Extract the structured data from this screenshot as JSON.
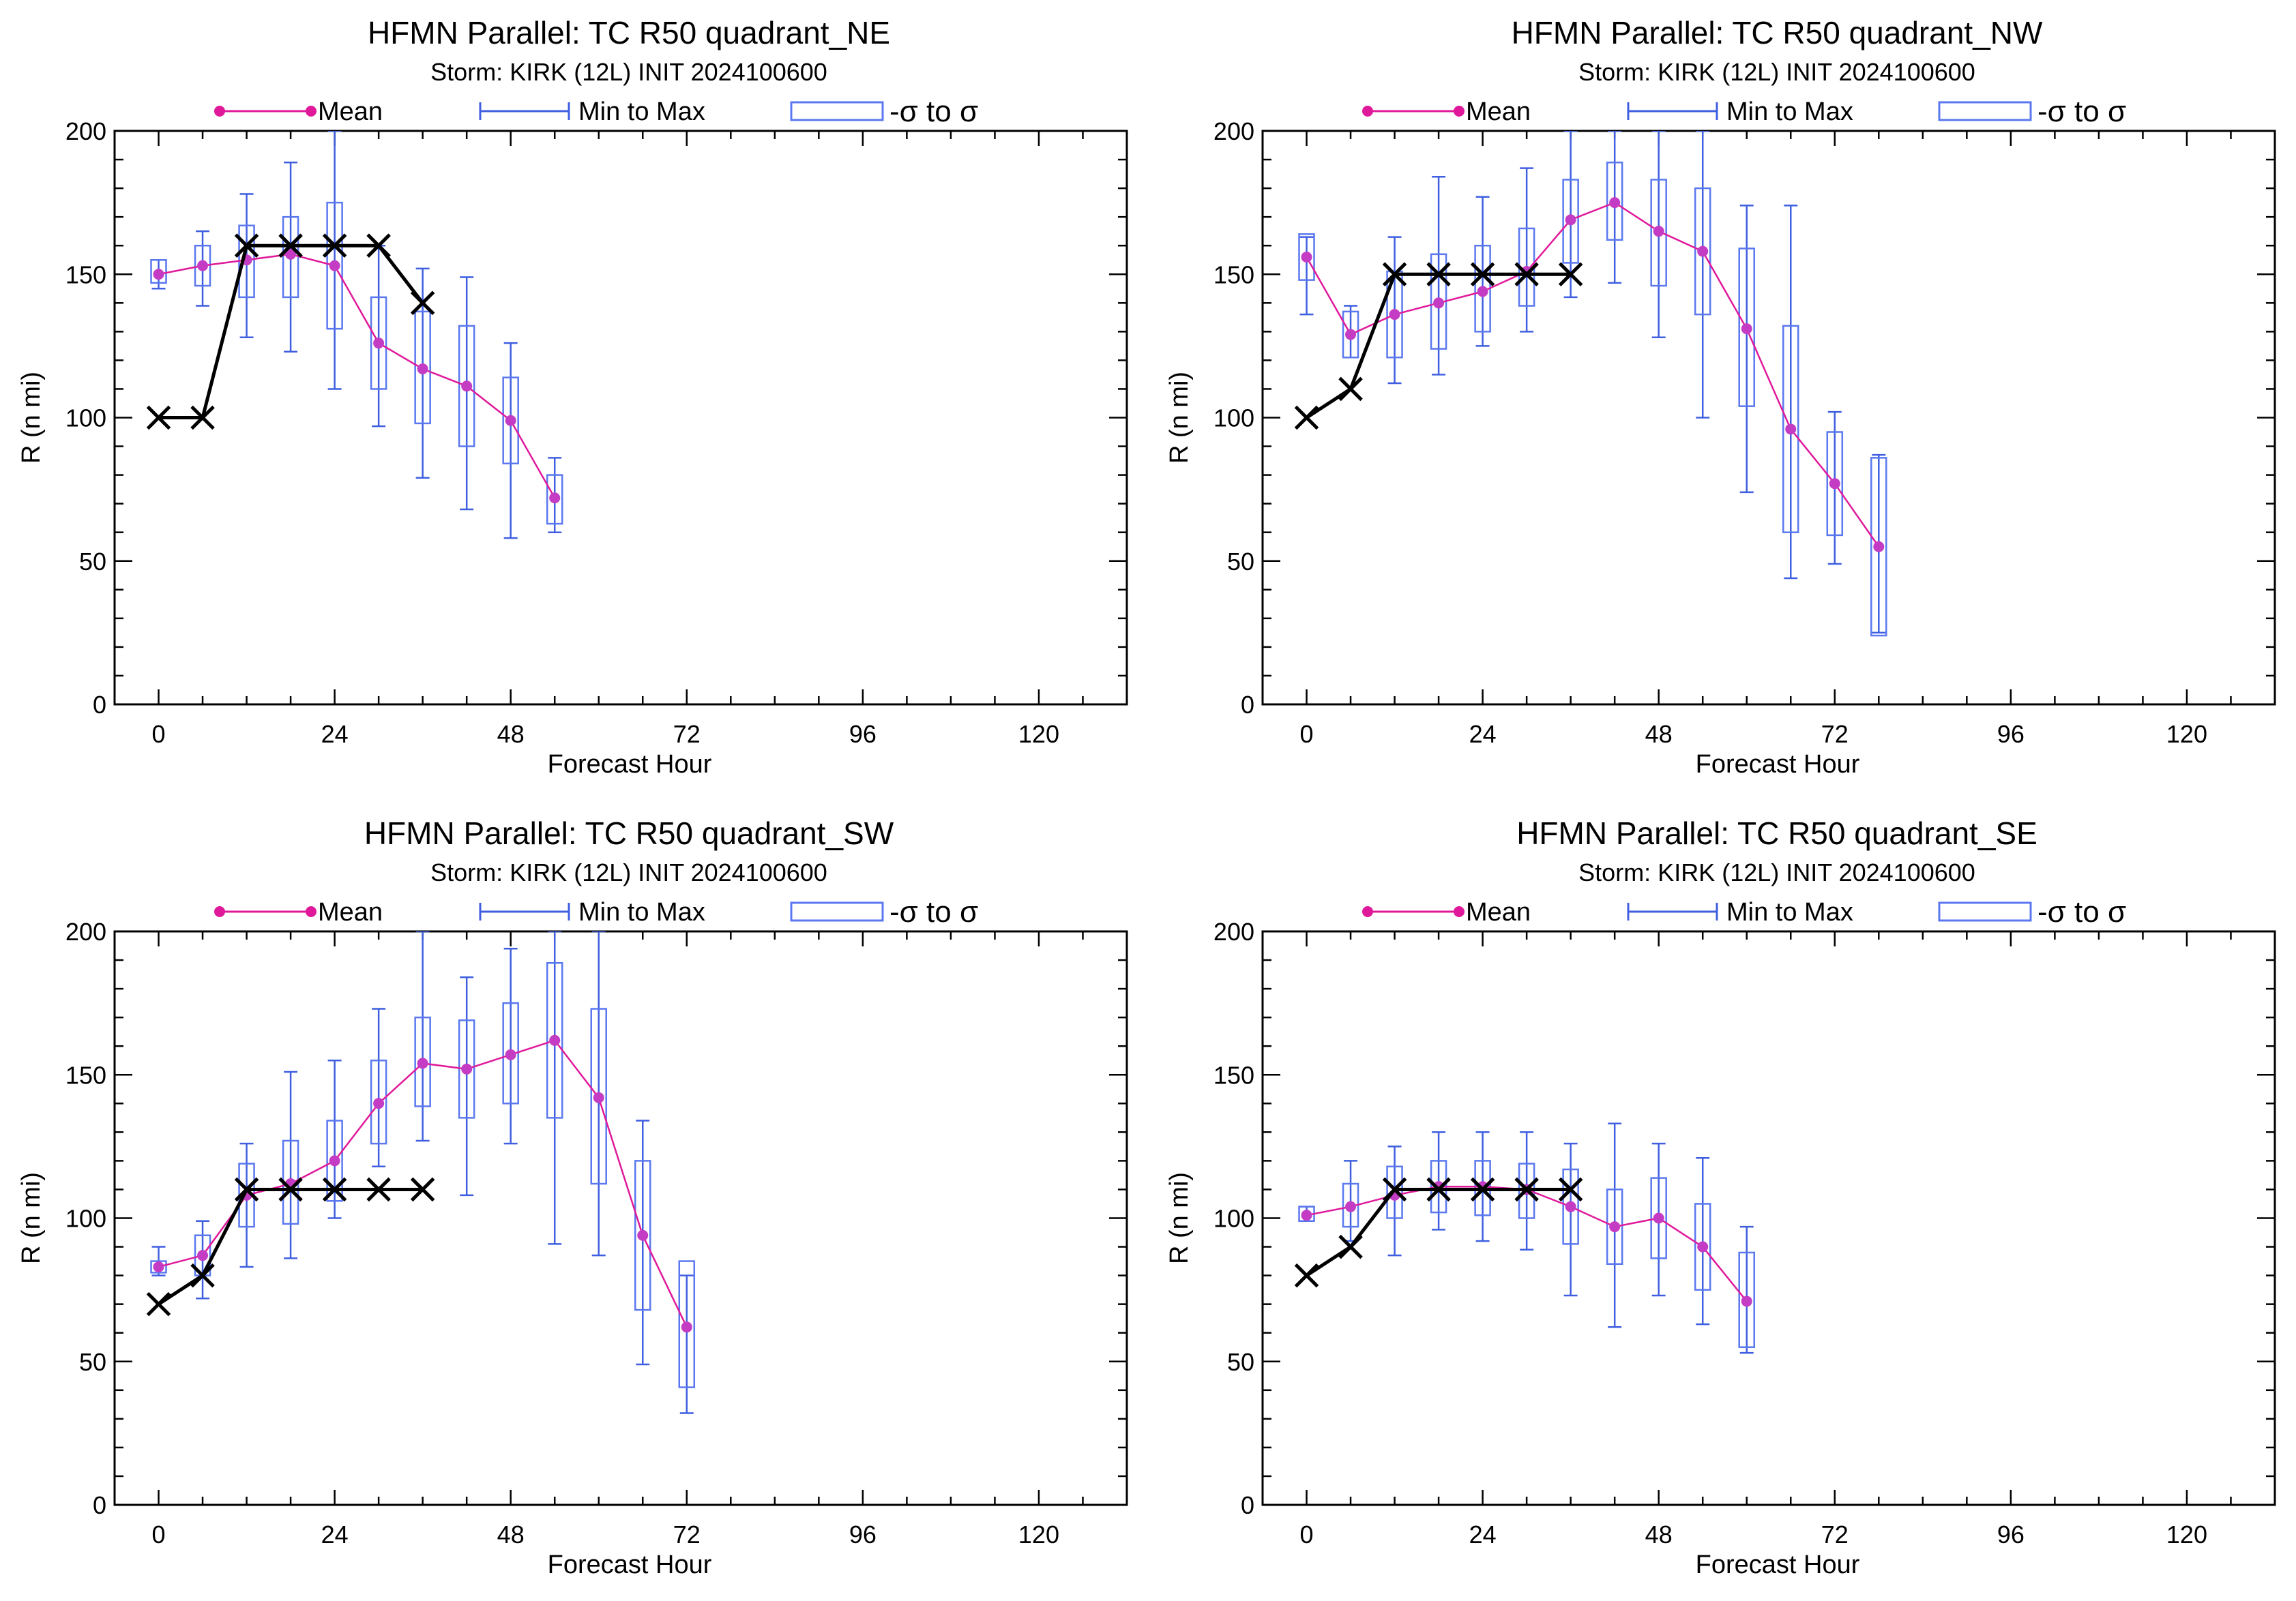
{
  "legend": {
    "mean_label": "Mean",
    "range_label": "Min to Max",
    "sigma_label": "-σ to σ"
  },
  "colors": {
    "mean": "#e0199b",
    "mean_marker": "#c43cc4",
    "range": "#3f5fe0",
    "sigma_box": "#5b78f0",
    "official": "#000000"
  },
  "chart_data": [
    {
      "type": "box",
      "title": "HFMN Parallel: TC  R50 quadrant_NE",
      "subtitle": "Storm: KIRK (12L) INIT 2024100600",
      "xlabel": "Forecast Hour",
      "ylabel": "R (n mi)",
      "xlim": [
        -6,
        132
      ],
      "ylim": [
        0,
        200
      ],
      "xticks": [
        0,
        24,
        48,
        72,
        96,
        120
      ],
      "yticks": [
        0,
        50,
        100,
        150,
        200
      ],
      "hours": [
        0,
        6,
        12,
        18,
        24,
        30,
        36,
        42,
        48,
        54
      ],
      "mean": [
        150,
        153,
        155,
        157,
        153,
        126,
        117,
        111,
        99,
        72
      ],
      "min": [
        145,
        139,
        128,
        123,
        110,
        97,
        79,
        68,
        58,
        60
      ],
      "max": [
        155,
        165,
        178,
        189,
        200,
        160,
        152,
        149,
        126,
        86
      ],
      "sigma_low": [
        147,
        146,
        142,
        142,
        131,
        110,
        98,
        90,
        84,
        63
      ],
      "sigma_high": [
        155,
        160,
        167,
        170,
        175,
        142,
        137,
        132,
        114,
        80
      ],
      "official_hours": [
        0,
        6,
        12,
        18,
        24,
        30,
        36
      ],
      "official": [
        100,
        100,
        160,
        160,
        160,
        160,
        140
      ]
    },
    {
      "type": "box",
      "title": "HFMN Parallel: TC  R50 quadrant_NW",
      "subtitle": "Storm: KIRK (12L) INIT 2024100600",
      "xlabel": "Forecast Hour",
      "ylabel": "R (n mi)",
      "xlim": [
        -6,
        132
      ],
      "ylim": [
        0,
        200
      ],
      "xticks": [
        0,
        24,
        48,
        72,
        96,
        120
      ],
      "yticks": [
        0,
        50,
        100,
        150,
        200
      ],
      "hours": [
        0,
        6,
        12,
        18,
        24,
        30,
        36,
        42,
        48,
        54,
        60,
        66,
        72,
        78
      ],
      "mean": [
        156,
        129,
        136,
        140,
        144,
        151,
        169,
        175,
        165,
        158,
        131,
        96,
        77,
        55
      ],
      "min": [
        136,
        121,
        112,
        115,
        125,
        130,
        142,
        147,
        128,
        100,
        74,
        44,
        49,
        25
      ],
      "max": [
        163,
        139,
        163,
        184,
        177,
        187,
        200,
        200,
        200,
        200,
        174,
        174,
        102,
        87
      ],
      "sigma_low": [
        148,
        121,
        121,
        124,
        130,
        139,
        154,
        162,
        146,
        136,
        104,
        60,
        59,
        24
      ],
      "sigma_high": [
        164,
        137,
        151,
        157,
        160,
        166,
        183,
        189,
        183,
        180,
        159,
        132,
        95,
        86
      ],
      "official_hours": [
        0,
        6,
        12,
        18,
        24,
        30,
        36
      ],
      "official": [
        100,
        110,
        150,
        150,
        150,
        150,
        150
      ]
    },
    {
      "type": "box",
      "title": "HFMN Parallel: TC  R50 quadrant_SW",
      "subtitle": "Storm: KIRK (12L) INIT 2024100600",
      "xlabel": "Forecast Hour",
      "ylabel": "R (n mi)",
      "xlim": [
        -6,
        132
      ],
      "ylim": [
        0,
        200
      ],
      "xticks": [
        0,
        24,
        48,
        72,
        96,
        120
      ],
      "yticks": [
        0,
        50,
        100,
        150,
        200
      ],
      "hours": [
        0,
        6,
        12,
        18,
        24,
        30,
        36,
        42,
        48,
        54,
        60,
        66,
        72
      ],
      "mean": [
        83,
        87,
        108,
        112,
        120,
        140,
        154,
        152,
        157,
        162,
        142,
        94,
        62
      ],
      "min": [
        80,
        72,
        83,
        86,
        100,
        118,
        127,
        108,
        126,
        91,
        87,
        49,
        32
      ],
      "max": [
        90,
        99,
        126,
        151,
        155,
        173,
        200,
        184,
        194,
        200,
        200,
        134,
        80
      ],
      "sigma_low": [
        81,
        80,
        97,
        98,
        106,
        126,
        139,
        135,
        140,
        135,
        112,
        68,
        41
      ],
      "sigma_high": [
        85,
        94,
        119,
        127,
        134,
        155,
        170,
        169,
        175,
        189,
        173,
        120,
        85
      ],
      "official_hours": [
        0,
        6,
        12,
        18,
        24,
        30,
        36
      ],
      "official": [
        70,
        80,
        110,
        110,
        110,
        110,
        110
      ]
    },
    {
      "type": "box",
      "title": "HFMN Parallel: TC  R50 quadrant_SE",
      "subtitle": "Storm: KIRK (12L) INIT 2024100600",
      "xlabel": "Forecast Hour",
      "ylabel": "R (n mi)",
      "xlim": [
        -6,
        132
      ],
      "ylim": [
        0,
        200
      ],
      "xticks": [
        0,
        24,
        48,
        72,
        96,
        120
      ],
      "yticks": [
        0,
        50,
        100,
        150,
        200
      ],
      "hours": [
        0,
        6,
        12,
        18,
        24,
        30,
        36,
        42,
        48,
        54,
        60
      ],
      "mean": [
        101,
        104,
        108,
        111,
        111,
        110,
        104,
        97,
        100,
        90,
        71
      ],
      "min": [
        99,
        92,
        87,
        96,
        92,
        89,
        73,
        62,
        73,
        63,
        53
      ],
      "max": [
        104,
        120,
        125,
        130,
        130,
        130,
        126,
        133,
        126,
        121,
        97
      ],
      "sigma_low": [
        99,
        97,
        100,
        102,
        101,
        100,
        91,
        84,
        86,
        75,
        55
      ],
      "sigma_high": [
        104,
        112,
        118,
        120,
        120,
        119,
        117,
        110,
        114,
        105,
        88
      ],
      "official_hours": [
        0,
        6,
        12,
        18,
        24,
        30,
        36
      ],
      "official": [
        80,
        90,
        110,
        110,
        110,
        110,
        110
      ]
    }
  ]
}
